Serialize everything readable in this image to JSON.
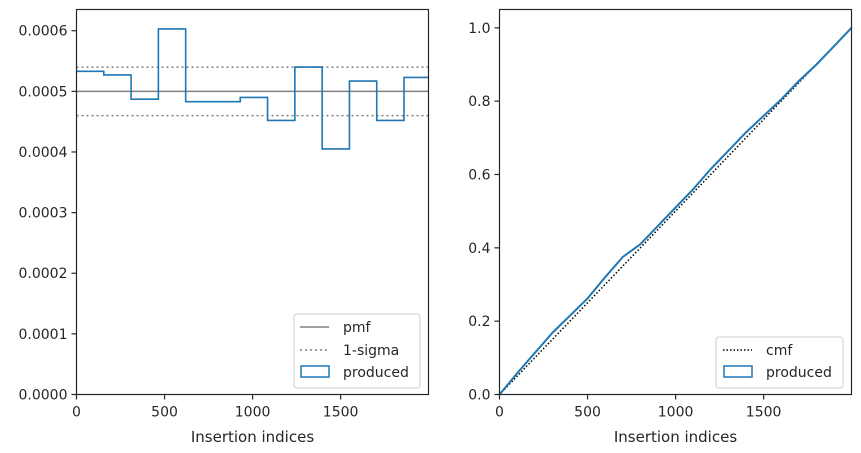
{
  "colors": {
    "pmf": "#808080",
    "sigma": "#808080",
    "produced": "#1f77b4",
    "cmf": "#000000",
    "axes": "#262626"
  },
  "chart_data": [
    {
      "type": "histogram-step",
      "xlabel": "Insertion indices",
      "ylabel": "",
      "xlim": [
        0,
        1999
      ],
      "ylim": [
        0,
        0.000635
      ],
      "xticks": [
        0,
        500,
        1000,
        1500
      ],
      "xtick_labels": [
        "0",
        "500",
        "1000",
        "1500"
      ],
      "yticks": [
        0,
        0.0001,
        0.0002,
        0.0003,
        0.0004,
        0.0005,
        0.0006
      ],
      "ytick_labels": [
        "0.0000",
        "0.0001",
        "0.0002",
        "0.0003",
        "0.0004",
        "0.0005",
        "0.0006"
      ],
      "bins": [
        0,
        155,
        310,
        465,
        620,
        775,
        930,
        1085,
        1240,
        1395,
        1550,
        1705,
        1860,
        1999
      ],
      "series": [
        {
          "name": "produced",
          "values": [
            0.000533,
            0.000527,
            0.000487,
            0.000603,
            0.000483,
            0.000483,
            0.00049,
            0.000452,
            0.00054,
            0.000405,
            0.000517,
            0.000452,
            0.000523
          ]
        }
      ],
      "reference_lines": {
        "pmf": 0.0005,
        "sigma_upper": 0.00054,
        "sigma_lower": 0.00046
      },
      "legend": {
        "position": "lower right",
        "entries": [
          "pmf",
          "1-sigma",
          "produced"
        ]
      }
    },
    {
      "type": "line",
      "xlabel": "Insertion indices",
      "ylabel": "",
      "xlim": [
        0,
        1999
      ],
      "ylim": [
        0,
        1.05
      ],
      "xticks": [
        0,
        500,
        1000,
        1500
      ],
      "xtick_labels": [
        "0",
        "500",
        "1000",
        "1500"
      ],
      "yticks": [
        0,
        0.2,
        0.4,
        0.6,
        0.8,
        1.0
      ],
      "ytick_labels": [
        "0.0",
        "0.2",
        "0.4",
        "0.6",
        "0.8",
        "1.0"
      ],
      "series": [
        {
          "name": "cmf",
          "style": "dotted",
          "x": [
            0,
            1999
          ],
          "y": [
            0,
            1.0
          ]
        },
        {
          "name": "produced",
          "style": "solid",
          "x": [
            0,
            100,
            200,
            300,
            400,
            500,
            600,
            700,
            800,
            900,
            1000,
            1100,
            1200,
            1300,
            1400,
            1500,
            1600,
            1700,
            1800,
            1900,
            1999
          ],
          "y": [
            0,
            0.058,
            0.113,
            0.168,
            0.215,
            0.262,
            0.32,
            0.375,
            0.41,
            0.46,
            0.51,
            0.56,
            0.615,
            0.665,
            0.715,
            0.76,
            0.805,
            0.855,
            0.9,
            0.95,
            1.0
          ]
        }
      ],
      "legend": {
        "position": "lower right",
        "entries": [
          "cmf",
          "produced"
        ]
      }
    }
  ]
}
